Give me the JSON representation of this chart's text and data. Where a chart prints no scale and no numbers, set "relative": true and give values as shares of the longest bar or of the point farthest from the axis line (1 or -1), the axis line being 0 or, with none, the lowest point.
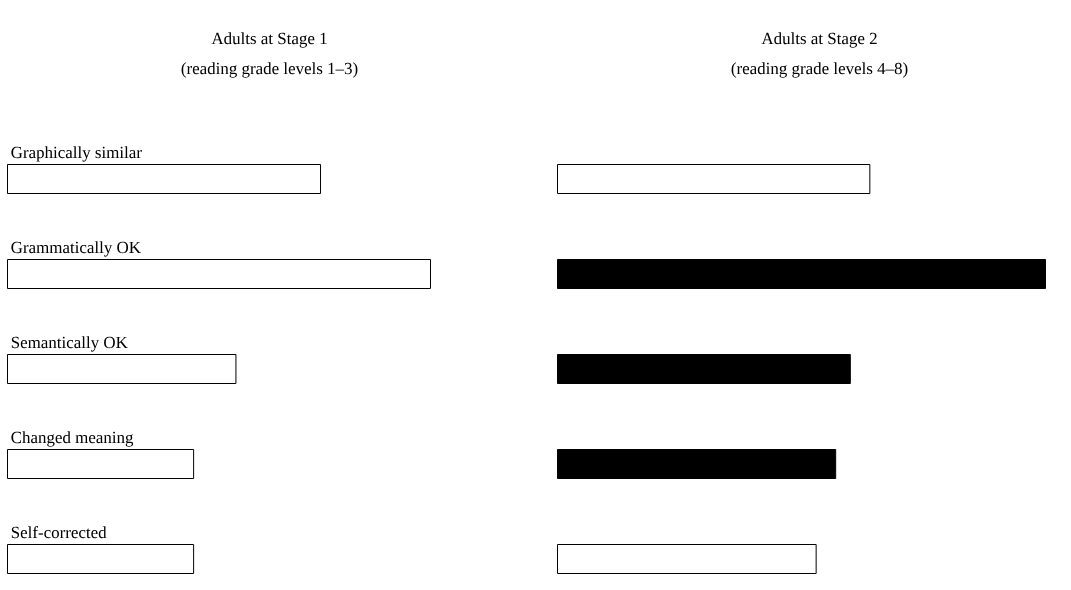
{
  "chart_data": [
    {
      "type": "bar",
      "orientation": "horizontal",
      "relative": true,
      "title": "Adults at Stage 1",
      "subtitle": "(reading grade levels 1–3)",
      "categories": [
        "Graphically similar",
        "Grammatically OK",
        "Semantically OK",
        "Changed meaning",
        "Self-corrected"
      ],
      "values": [
        0.74,
        1,
        0.54,
        0.44,
        0.44
      ],
      "colors": [
        "#ffffff",
        "#ffffff",
        "#ffffff",
        "#ffffff",
        "#ffffff"
      ]
    },
    {
      "type": "bar",
      "orientation": "horizontal",
      "relative": true,
      "title": "Adults at Stage 2",
      "subtitle": "(reading grade levels 4–8)",
      "categories": [
        null,
        null,
        null,
        null,
        null
      ],
      "values": [
        0.64,
        1,
        0.6,
        0.57,
        0.53
      ],
      "colors": [
        "#ffffff",
        "#000000",
        "#000000",
        "#000000",
        "#ffffff"
      ]
    }
  ]
}
